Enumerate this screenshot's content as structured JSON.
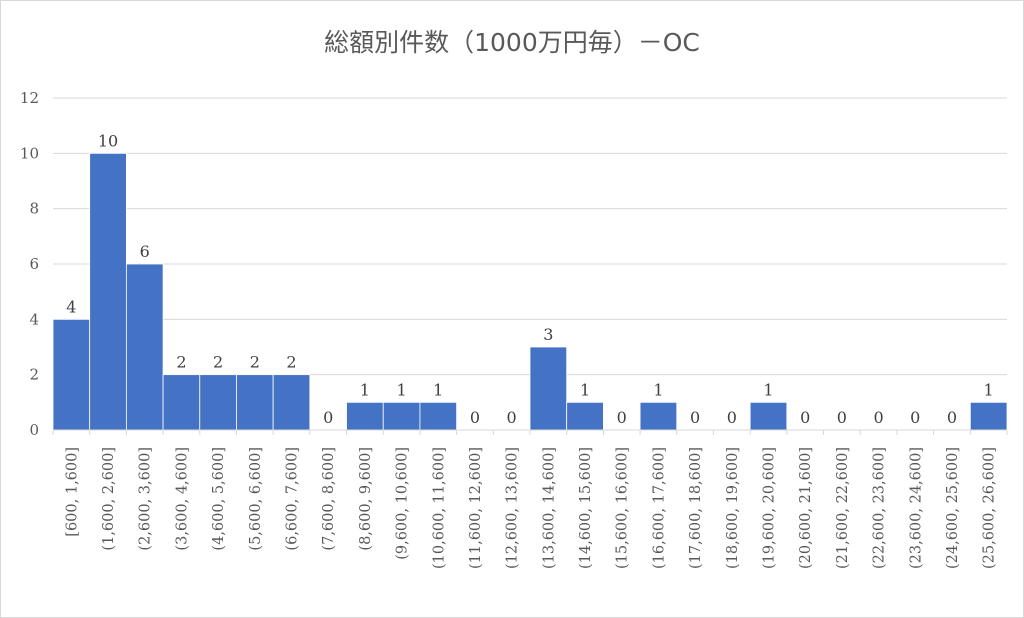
{
  "chart_data": {
    "type": "bar",
    "title": "総額別件数（1000万円毎）－OC",
    "xlabel": "",
    "ylabel": "",
    "ylim": [
      0,
      12
    ],
    "yticks": [
      0,
      2,
      4,
      6,
      8,
      10,
      12
    ],
    "grid": true,
    "legend": "none",
    "bar_color": "#4472C4",
    "categories": [
      "[600, 1,600]",
      "(1,600, 2,600]",
      "(2,600, 3,600]",
      "(3,600, 4,600]",
      "(4,600, 5,600]",
      "(5,600, 6,600]",
      "(6,600, 7,600]",
      "(7,600, 8,600]",
      "(8,600, 9,600]",
      "(9,600, 10,600]",
      "(10,600, 11,600]",
      "(11,600, 12,600]",
      "(12,600, 13,600]",
      "(13,600, 14,600]",
      "(14,600, 15,600]",
      "(15,600, 16,600]",
      "(16,600, 17,600]",
      "(17,600, 18,600]",
      "(18,600, 19,600]",
      "(19,600, 20,600]",
      "(20,600, 21,600]",
      "(21,600, 22,600]",
      "(22,600, 23,600]",
      "(23,600, 24,600]",
      "(24,600, 25,600]",
      "(25,600, 26,600]"
    ],
    "values": [
      4,
      10,
      6,
      2,
      2,
      2,
      2,
      0,
      1,
      1,
      1,
      0,
      0,
      3,
      1,
      0,
      1,
      0,
      0,
      1,
      0,
      0,
      0,
      0,
      0,
      1
    ]
  }
}
